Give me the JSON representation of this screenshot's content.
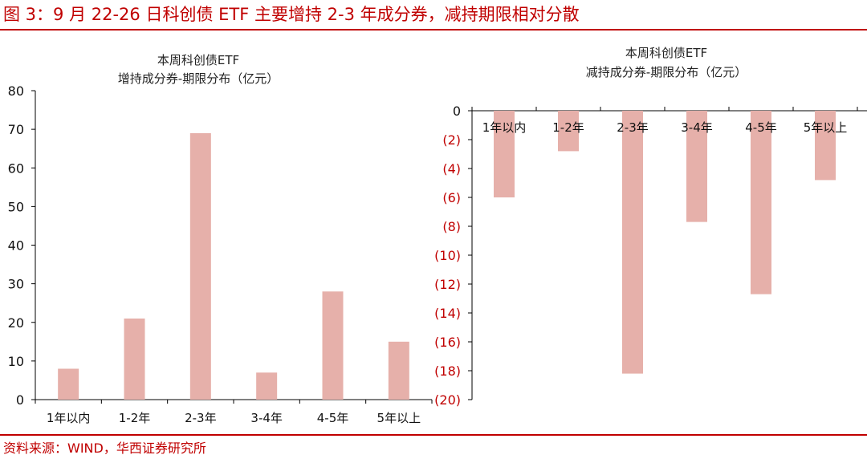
{
  "figure": {
    "title": "图 3：9 月 22-26 日科创债 ETF 主要增持 2-3 年成分券，减持期限相对分散",
    "source": "资料来源：WIND，华西证券研究所",
    "bar_color": "#e6b0aa",
    "accent_color": "#c00000"
  },
  "chart_data": [
    {
      "type": "bar",
      "title": "本周科创债ETF",
      "subtitle": "增持成分券-期限分布（亿元）",
      "categories": [
        "1年以内",
        "1-2年",
        "2-3年",
        "3-4年",
        "4-5年",
        "5年以上"
      ],
      "values": [
        8,
        21,
        69,
        7,
        28,
        15
      ],
      "ylim": [
        0,
        80
      ],
      "yticks": [
        0,
        10,
        20,
        30,
        40,
        50,
        60,
        70,
        80
      ],
      "ytick_labels": [
        "0",
        "10",
        "20",
        "30",
        "40",
        "50",
        "60",
        "70",
        "80"
      ],
      "grid": false,
      "legend": "none"
    },
    {
      "type": "bar",
      "title": "本周科创债ETF",
      "subtitle": "减持成分券-期限分布（亿元）",
      "categories": [
        "1年以内",
        "1-2年",
        "2-3年",
        "3-4年",
        "4-5年",
        "5年以上"
      ],
      "values": [
        -6,
        -2.8,
        -18.2,
        -7.7,
        -12.7,
        -4.8
      ],
      "ylim": [
        -20,
        0
      ],
      "yticks": [
        0,
        -2,
        -4,
        -6,
        -8,
        -10,
        -12,
        -14,
        -16,
        -18,
        -20
      ],
      "ytick_labels": [
        "0",
        "(2)",
        "(4)",
        "(6)",
        "(8)",
        "(10)",
        "(12)",
        "(14)",
        "(16)",
        "(18)",
        "(20)"
      ],
      "category_labels_position": "top",
      "grid": false,
      "legend": "none"
    }
  ]
}
